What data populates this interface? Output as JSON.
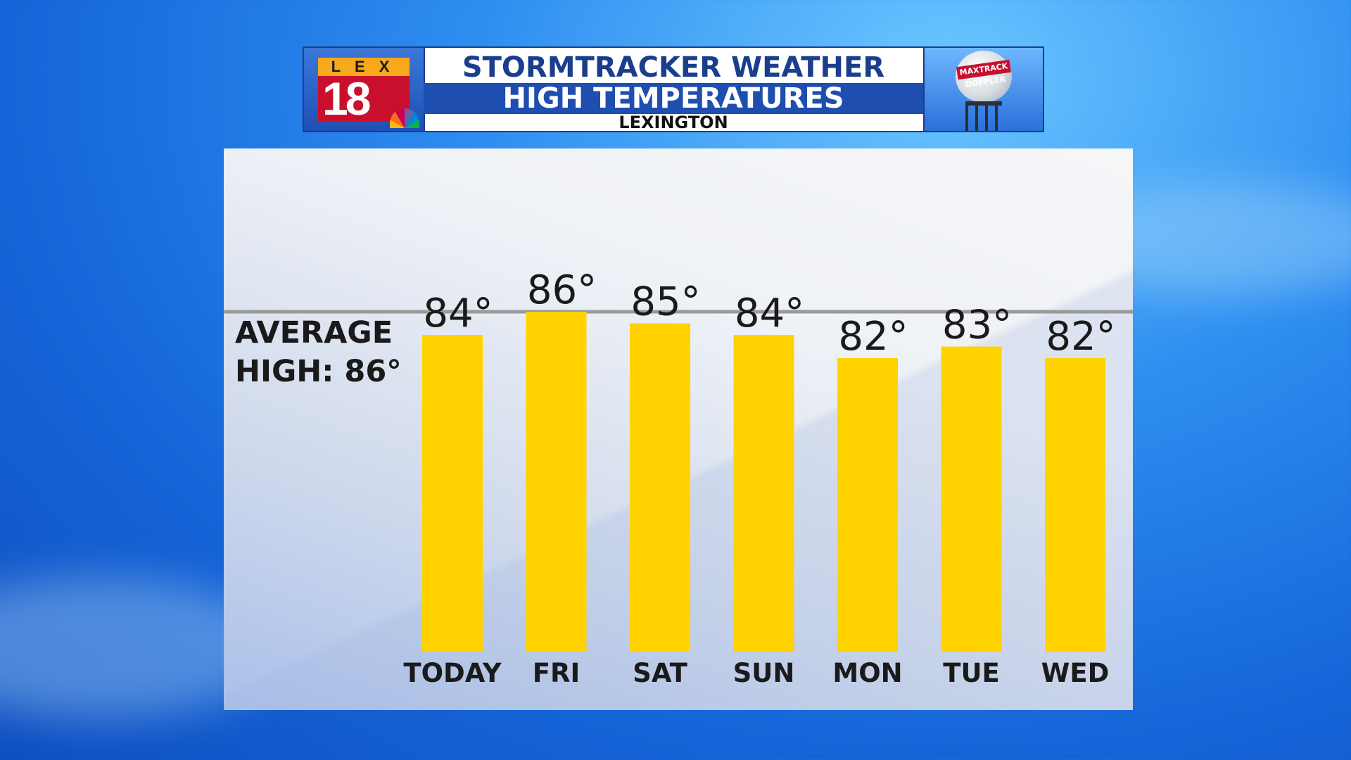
{
  "header": {
    "logo_letters": "LEX",
    "logo_number": "18",
    "title_line1": "STORMTRACKER WEATHER",
    "title_line2": "HIGH TEMPERATURES",
    "title_line3": "LEXINGTON",
    "radar_label": "MAXTRACK DOPPLER"
  },
  "average": {
    "label": "AVERAGE\nHIGH: 86°",
    "value": 86
  },
  "colors": {
    "bar": "#FFD200",
    "average_line": "#9A9A9A",
    "text": "#1A1A1A",
    "header_blue": "#1E4EB0"
  },
  "chart_data": {
    "type": "bar",
    "categories": [
      "TODAY",
      "FRI",
      "SAT",
      "SUN",
      "MON",
      "TUE",
      "WED"
    ],
    "values": [
      84,
      86,
      85,
      84,
      82,
      83,
      82
    ],
    "value_labels": [
      "84°",
      "86°",
      "85°",
      "84°",
      "82°",
      "83°",
      "82°"
    ],
    "reference_line": 86,
    "grid": false,
    "legend": "none"
  }
}
